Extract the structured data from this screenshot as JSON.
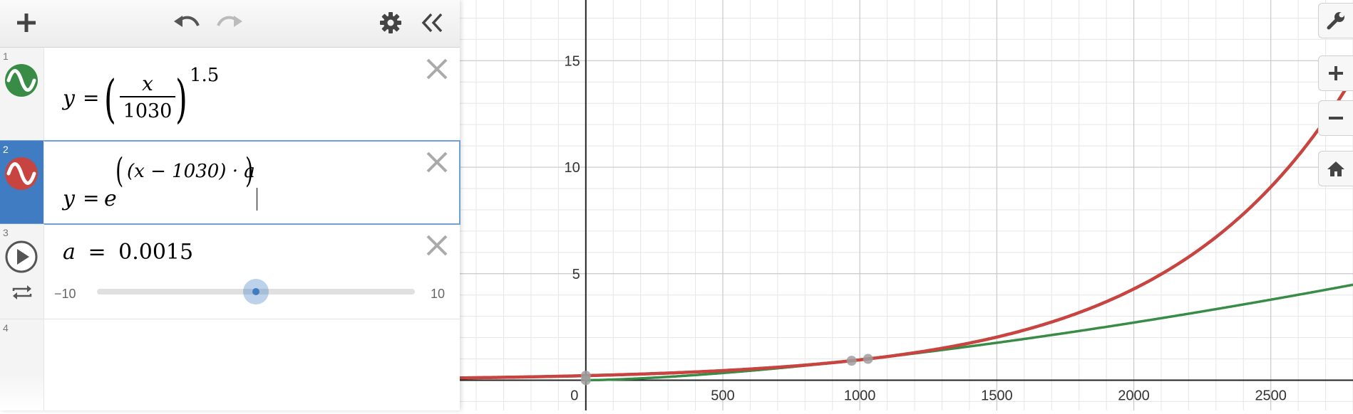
{
  "expressions": [
    {
      "number": "1",
      "color": "#388c46",
      "lhs": "y",
      "eq": "=",
      "numerator": "x",
      "denominator": "1030",
      "exponent": "1.5"
    },
    {
      "number": "2",
      "color": "#c74440",
      "lhs": "y",
      "eq": "=",
      "base": "e",
      "exp_inner": "(x − 1030) · a"
    },
    {
      "number": "3",
      "lhs": "a",
      "eq": "=",
      "value": "0.0015",
      "slider_min": "−10",
      "slider_max": "10",
      "slider_fraction": 0.50008
    },
    {
      "number": "4"
    }
  ],
  "graph": {
    "x_ticks": [
      "0",
      "500",
      "1000",
      "1500",
      "2000",
      "2500"
    ],
    "y_ticks": [
      "5",
      "10",
      "15"
    ],
    "x_range": [
      -460,
      2800
    ],
    "y_range": [
      -1.42,
      17.85
    ],
    "curve1_color": "#388c46",
    "curve2_color": "#c74440",
    "a": 0.0015
  },
  "icons": {
    "add": "plus-icon",
    "undo": "undo-icon",
    "redo": "redo-icon",
    "settings": "gear-icon",
    "collapse": "double-chevron-left-icon",
    "wrench": "wrench-icon",
    "zoom_in": "plus-icon",
    "zoom_out": "minus-icon",
    "home": "home-icon"
  }
}
